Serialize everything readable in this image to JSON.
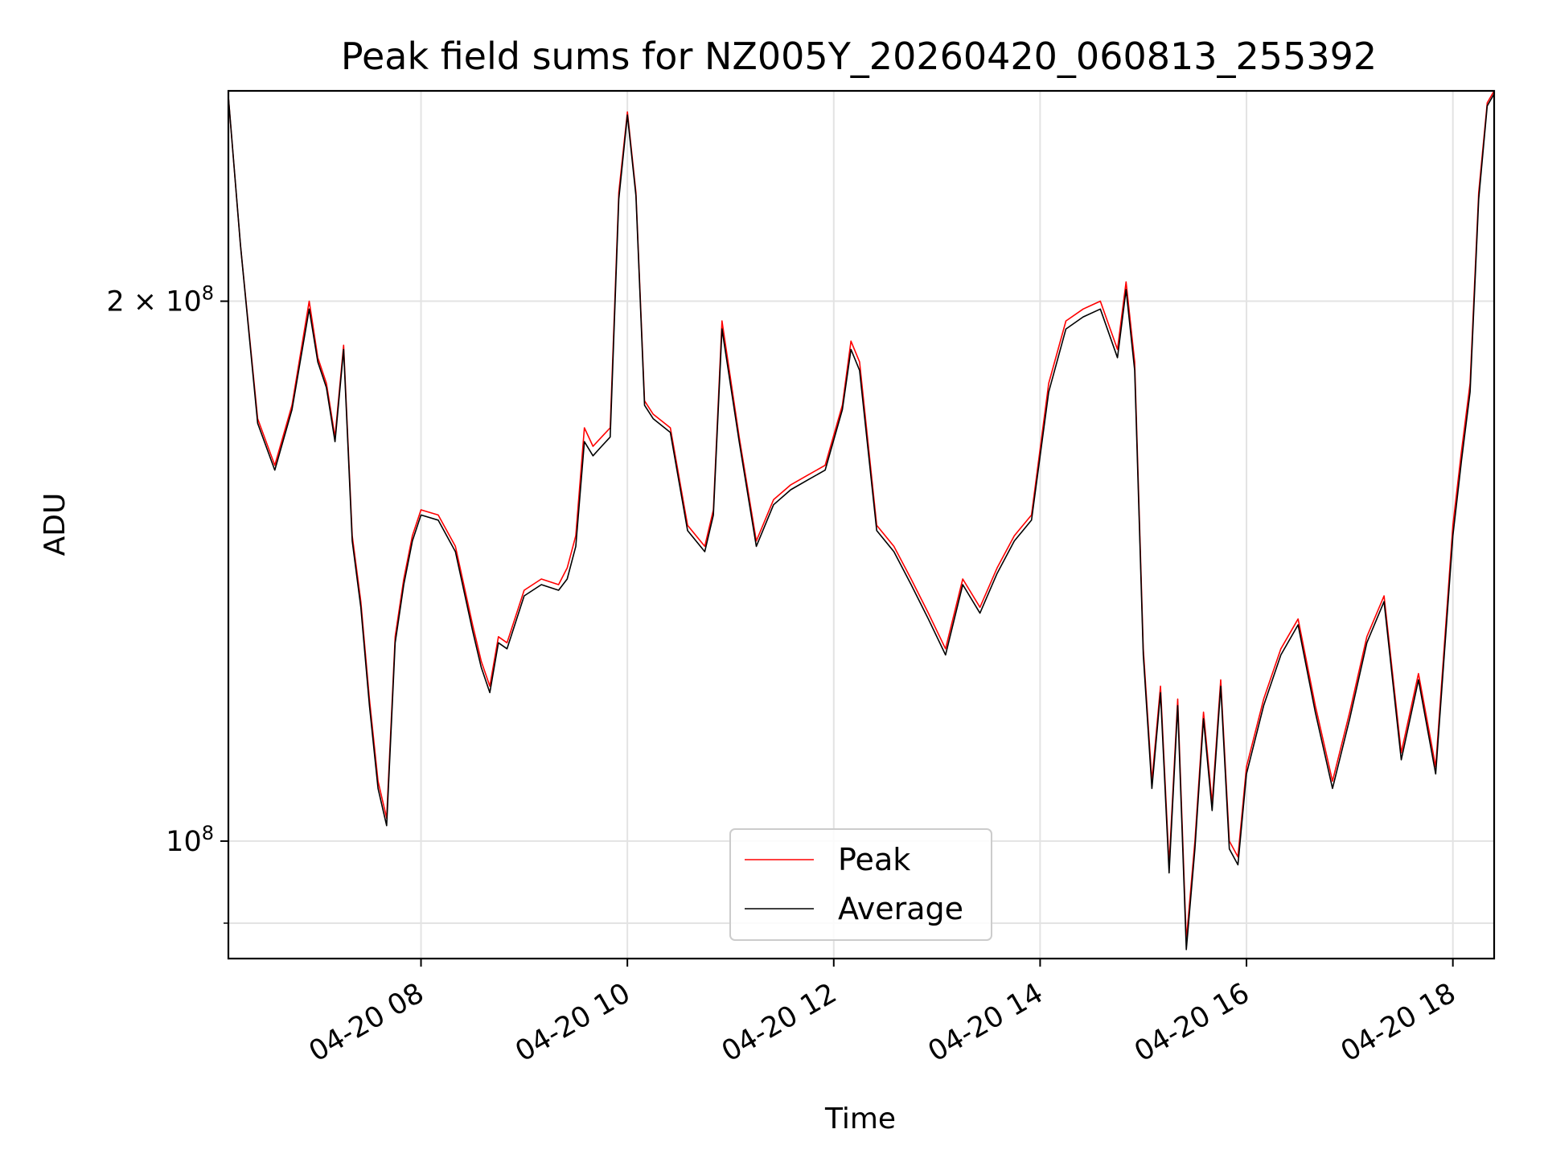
{
  "chart_data": {
    "type": "line",
    "title": "Peak field sums for NZ005Y_20260420_060813_255392",
    "xlabel": "Time",
    "ylabel": "ADU",
    "y_scale": "log",
    "ylim": [
      86000000,
      262000000
    ],
    "xlim": [
      "04-20 06:08",
      "04-20 18:24"
    ],
    "x_ticks": [
      {
        "time": "04-20 08:00",
        "label": "04-20 08"
      },
      {
        "time": "04-20 10:00",
        "label": "04-20 10"
      },
      {
        "time": "04-20 12:00",
        "label": "04-20 12"
      },
      {
        "time": "04-20 14:00",
        "label": "04-20 14"
      },
      {
        "time": "04-20 16:00",
        "label": "04-20 16"
      },
      {
        "time": "04-20 18:00",
        "label": "04-20 18"
      }
    ],
    "y_ticks": [
      {
        "value": 100000000,
        "mantissa": "",
        "base": "10",
        "exp": "8"
      },
      {
        "value": 200000000,
        "mantissa": "2 × ",
        "base": "10",
        "exp": "8"
      }
    ],
    "y_minor_ticks": [
      90000000
    ],
    "grid": true,
    "legend_position": "lower center",
    "series": [
      {
        "name": "Peak",
        "color": "#ff0000",
        "x": [
          "04-20 06:08",
          "04-20 06:15",
          "04-20 06:25",
          "04-20 06:35",
          "04-20 06:45",
          "04-20 06:55",
          "04-20 07:00",
          "04-20 07:05",
          "04-20 07:10",
          "04-20 07:15",
          "04-20 07:20",
          "04-20 07:25",
          "04-20 07:30",
          "04-20 07:35",
          "04-20 07:40",
          "04-20 07:45",
          "04-20 07:50",
          "04-20 07:55",
          "04-20 08:00",
          "04-20 08:10",
          "04-20 08:20",
          "04-20 08:30",
          "04-20 08:35",
          "04-20 08:40",
          "04-20 08:45",
          "04-20 08:50",
          "04-20 09:00",
          "04-20 09:10",
          "04-20 09:20",
          "04-20 09:25",
          "04-20 09:30",
          "04-20 09:35",
          "04-20 09:40",
          "04-20 09:45",
          "04-20 09:50",
          "04-20 09:55",
          "04-20 10:00",
          "04-20 10:05",
          "04-20 10:10",
          "04-20 10:15",
          "04-20 10:25",
          "04-20 10:35",
          "04-20 10:45",
          "04-20 10:50",
          "04-20 10:55",
          "04-20 11:05",
          "04-20 11:15",
          "04-20 11:25",
          "04-20 11:35",
          "04-20 11:45",
          "04-20 11:55",
          "04-20 12:05",
          "04-20 12:10",
          "04-20 12:15",
          "04-20 12:25",
          "04-20 12:35",
          "04-20 12:45",
          "04-20 12:55",
          "04-20 13:05",
          "04-20 13:15",
          "04-20 13:25",
          "04-20 13:35",
          "04-20 13:45",
          "04-20 13:55",
          "04-20 14:05",
          "04-20 14:15",
          "04-20 14:25",
          "04-20 14:35",
          "04-20 14:45",
          "04-20 14:50",
          "04-20 14:55",
          "04-20 15:00",
          "04-20 15:05",
          "04-20 15:10",
          "04-20 15:15",
          "04-20 15:20",
          "04-20 15:25",
          "04-20 15:30",
          "04-20 15:35",
          "04-20 15:40",
          "04-20 15:45",
          "04-20 15:50",
          "04-20 15:55",
          "04-20 16:00",
          "04-20 16:10",
          "04-20 16:20",
          "04-20 16:30",
          "04-20 16:40",
          "04-20 16:50",
          "04-20 17:00",
          "04-20 17:10",
          "04-20 17:20",
          "04-20 17:30",
          "04-20 17:40",
          "04-20 17:50",
          "04-20 18:00",
          "04-20 18:05",
          "04-20 18:10",
          "04-20 18:15",
          "04-20 18:20",
          "04-20 18:24"
        ],
        "y": [
          260000000,
          215000000,
          172000000,
          162000000,
          175000000,
          200000000,
          186000000,
          180000000,
          168000000,
          189000000,
          148000000,
          136000000,
          120000000,
          108000000,
          103000000,
          130000000,
          140000000,
          148000000,
          153000000,
          152000000,
          146000000,
          132000000,
          126000000,
          122000000,
          130000000,
          129000000,
          138000000,
          140000000,
          139000000,
          142000000,
          148000000,
          170000000,
          166000000,
          168000000,
          170000000,
          230000000,
          255000000,
          230000000,
          176000000,
          173000000,
          170000000,
          150000000,
          146000000,
          153000000,
          195000000,
          168000000,
          147000000,
          155000000,
          158000000,
          160000000,
          162000000,
          175000000,
          190000000,
          185000000,
          150000000,
          146000000,
          140000000,
          134000000,
          128000000,
          140000000,
          135000000,
          142000000,
          148000000,
          152000000,
          180000000,
          195000000,
          198000000,
          200000000,
          188000000,
          205000000,
          185000000,
          128000000,
          108000000,
          122000000,
          97000000,
          120000000,
          88000000,
          100000000,
          118000000,
          105000000,
          123000000,
          100000000,
          98000000,
          110000000,
          120000000,
          128000000,
          133000000,
          119000000,
          108000000,
          118000000,
          130000000,
          137000000,
          112000000,
          124000000,
          110000000,
          150000000,
          165000000,
          180000000,
          230000000,
          258000000,
          262000000
        ]
      },
      {
        "name": "Average",
        "color": "#000000",
        "x": [
          "04-20 06:08",
          "04-20 06:15",
          "04-20 06:25",
          "04-20 06:35",
          "04-20 06:45",
          "04-20 06:55",
          "04-20 07:00",
          "04-20 07:05",
          "04-20 07:10",
          "04-20 07:15",
          "04-20 07:20",
          "04-20 07:25",
          "04-20 07:30",
          "04-20 07:35",
          "04-20 07:40",
          "04-20 07:45",
          "04-20 07:50",
          "04-20 07:55",
          "04-20 08:00",
          "04-20 08:10",
          "04-20 08:20",
          "04-20 08:30",
          "04-20 08:35",
          "04-20 08:40",
          "04-20 08:45",
          "04-20 08:50",
          "04-20 09:00",
          "04-20 09:10",
          "04-20 09:20",
          "04-20 09:25",
          "04-20 09:30",
          "04-20 09:35",
          "04-20 09:40",
          "04-20 09:45",
          "04-20 09:50",
          "04-20 09:55",
          "04-20 10:00",
          "04-20 10:05",
          "04-20 10:10",
          "04-20 10:15",
          "04-20 10:25",
          "04-20 10:35",
          "04-20 10:45",
          "04-20 10:50",
          "04-20 10:55",
          "04-20 11:05",
          "04-20 11:15",
          "04-20 11:25",
          "04-20 11:35",
          "04-20 11:45",
          "04-20 11:55",
          "04-20 12:05",
          "04-20 12:10",
          "04-20 12:15",
          "04-20 12:25",
          "04-20 12:35",
          "04-20 12:45",
          "04-20 12:55",
          "04-20 13:05",
          "04-20 13:15",
          "04-20 13:25",
          "04-20 13:35",
          "04-20 13:45",
          "04-20 13:55",
          "04-20 14:05",
          "04-20 14:15",
          "04-20 14:25",
          "04-20 14:35",
          "04-20 14:45",
          "04-20 14:50",
          "04-20 14:55",
          "04-20 15:00",
          "04-20 15:05",
          "04-20 15:10",
          "04-20 15:15",
          "04-20 15:20",
          "04-20 15:25",
          "04-20 15:30",
          "04-20 15:35",
          "04-20 15:40",
          "04-20 15:45",
          "04-20 15:50",
          "04-20 15:55",
          "04-20 16:00",
          "04-20 16:10",
          "04-20 16:20",
          "04-20 16:30",
          "04-20 16:40",
          "04-20 16:50",
          "04-20 17:00",
          "04-20 17:10",
          "04-20 17:20",
          "04-20 17:30",
          "04-20 17:40",
          "04-20 17:50",
          "04-20 18:00",
          "04-20 18:05",
          "04-20 18:10",
          "04-20 18:15",
          "04-20 18:20",
          "04-20 18:24"
        ],
        "y": [
          260000000,
          215000000,
          171000000,
          161000000,
          174000000,
          198000000,
          185000000,
          179000000,
          167000000,
          188000000,
          147000000,
          135000000,
          119000000,
          107000000,
          102000000,
          129000000,
          139000000,
          147000000,
          152000000,
          151000000,
          145000000,
          131000000,
          125000000,
          121000000,
          129000000,
          128000000,
          137000000,
          139000000,
          138000000,
          140000000,
          146000000,
          167000000,
          164000000,
          166000000,
          168000000,
          228000000,
          254000000,
          229000000,
          175000000,
          172000000,
          169000000,
          149000000,
          145000000,
          152000000,
          193000000,
          167000000,
          146000000,
          154000000,
          157000000,
          159000000,
          161000000,
          174000000,
          188000000,
          183000000,
          149000000,
          145000000,
          139000000,
          133000000,
          127000000,
          139000000,
          134000000,
          141000000,
          147000000,
          151000000,
          178000000,
          193000000,
          196000000,
          198000000,
          186000000,
          203000000,
          183000000,
          127000000,
          107000000,
          121000000,
          96000000,
          119000000,
          87000000,
          99000000,
          117000000,
          104000000,
          122000000,
          99000000,
          97000000,
          109000000,
          119000000,
          127000000,
          132000000,
          118000000,
          107000000,
          117000000,
          129000000,
          136000000,
          111000000,
          123000000,
          109000000,
          148000000,
          163000000,
          178000000,
          228000000,
          257000000,
          261000000
        ]
      }
    ]
  }
}
